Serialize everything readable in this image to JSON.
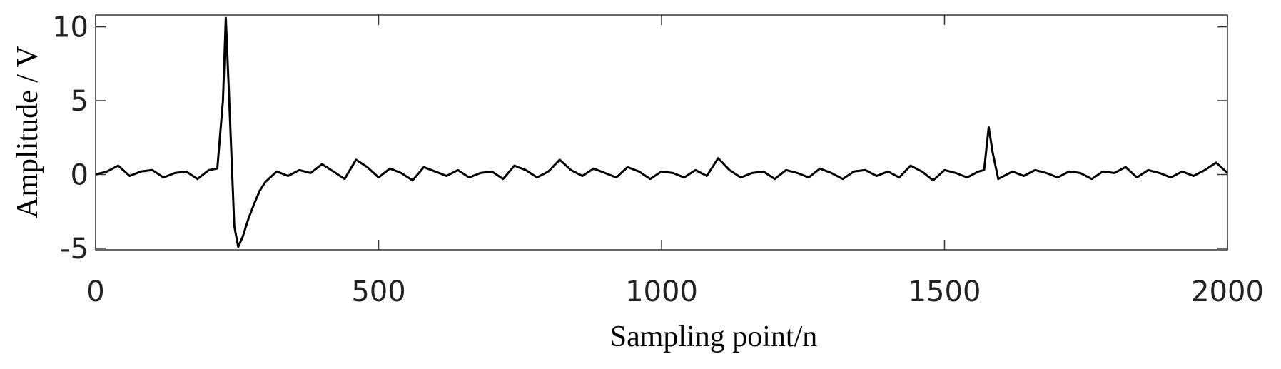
{
  "chart_data": {
    "type": "line",
    "xlabel": "Sampling point/n",
    "ylabel": "Amplitude / V",
    "color": "#000000",
    "x": [
      0,
      20,
      40,
      60,
      80,
      100,
      120,
      140,
      160,
      180,
      200,
      215,
      225,
      230,
      235,
      245,
      252,
      260,
      270,
      280,
      290,
      300,
      320,
      340,
      360,
      380,
      400,
      420,
      440,
      460,
      480,
      500,
      520,
      540,
      560,
      580,
      600,
      620,
      640,
      660,
      680,
      700,
      720,
      740,
      760,
      780,
      800,
      820,
      840,
      860,
      880,
      900,
      920,
      940,
      960,
      980,
      1000,
      1020,
      1040,
      1060,
      1080,
      1100,
      1120,
      1140,
      1160,
      1180,
      1200,
      1220,
      1240,
      1260,
      1280,
      1300,
      1320,
      1340,
      1360,
      1380,
      1400,
      1420,
      1440,
      1460,
      1480,
      1500,
      1520,
      1540,
      1560,
      1570,
      1578,
      1585,
      1595,
      1620,
      1640,
      1660,
      1680,
      1700,
      1720,
      1740,
      1760,
      1780,
      1800,
      1820,
      1840,
      1860,
      1880,
      1900,
      1920,
      1940,
      1960,
      1980,
      2000
    ],
    "values": [
      0,
      0.2,
      0.6,
      -0.1,
      0.2,
      0.3,
      -0.2,
      0.1,
      0.2,
      -0.3,
      0.3,
      0.4,
      5,
      10.6,
      6,
      -3.5,
      -4.9,
      -4.2,
      -3,
      -2,
      -1.1,
      -0.5,
      0.2,
      -0.1,
      0.3,
      0.1,
      0.7,
      0.2,
      -0.3,
      1.0,
      0.5,
      -0.2,
      0.4,
      0.1,
      -0.4,
      0.5,
      0.2,
      -0.1,
      0.3,
      -0.2,
      0.1,
      0.2,
      -0.3,
      0.6,
      0.3,
      -0.2,
      0.2,
      1.0,
      0.3,
      -0.1,
      0.4,
      0.1,
      -0.2,
      0.5,
      0.2,
      -0.3,
      0.2,
      0.1,
      -0.2,
      0.3,
      -0.1,
      1.1,
      0.3,
      -0.2,
      0.1,
      0.2,
      -0.3,
      0.3,
      0.1,
      -0.2,
      0.4,
      0.1,
      -0.3,
      0.2,
      0.3,
      -0.1,
      0.2,
      -0.2,
      0.6,
      0.2,
      -0.4,
      0.3,
      0.1,
      -0.2,
      0.2,
      0.3,
      3.2,
      1.5,
      -0.3,
      0.2,
      -0.1,
      0.3,
      0.1,
      -0.2,
      0.2,
      0.1,
      -0.3,
      0.2,
      0.1,
      0.5,
      -0.2,
      0.3,
      0.1,
      -0.2,
      0.2,
      -0.1,
      0.3,
      0.8,
      0.1
    ],
    "xlim": [
      0,
      2000
    ],
    "xticks": [
      0,
      500,
      1000,
      1500,
      2000
    ],
    "ylim": [
      -5.1,
      10.8
    ],
    "yticks": [
      -5,
      0,
      5,
      10
    ]
  }
}
